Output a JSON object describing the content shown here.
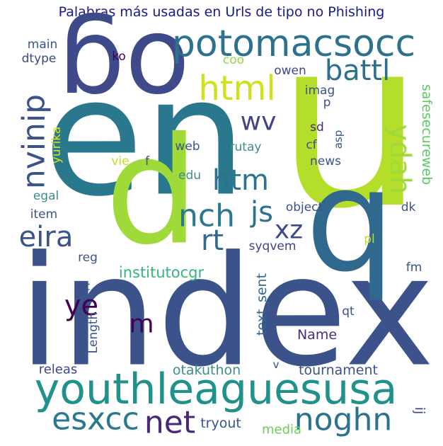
{
  "chart_data": {
    "type": "wordcloud",
    "title": "Palabras más usadas en Urls de tipo no Phishing",
    "words": [
      "u",
      "en",
      "index",
      "og",
      "p",
      "b",
      "potomacsocc",
      "html",
      "battl",
      "youthleaguesusa",
      "esxcc",
      "net",
      "noghn",
      "nvinip",
      "eira",
      "nch",
      "js",
      "xz",
      "rt",
      "htm",
      "wv",
      "ydah",
      "ye",
      "m",
      "institutocgr",
      "safesecureweb",
      "text_sent",
      "Length",
      "tournament",
      "otakuthon",
      "releas",
      "Name",
      "tryout",
      "media",
      "ij",
      "object",
      "syqvem",
      "news",
      "cf",
      "sd",
      "asp",
      "p",
      "imag",
      "owen",
      "coo",
      "ko",
      "main",
      "dtype",
      "yurika",
      "vie",
      "f",
      "web",
      "rutay",
      "edu",
      "egal",
      "item",
      "dk",
      "pl",
      "reg",
      "vc",
      "fm",
      "qt",
      "l",
      "v"
    ]
  }
}
